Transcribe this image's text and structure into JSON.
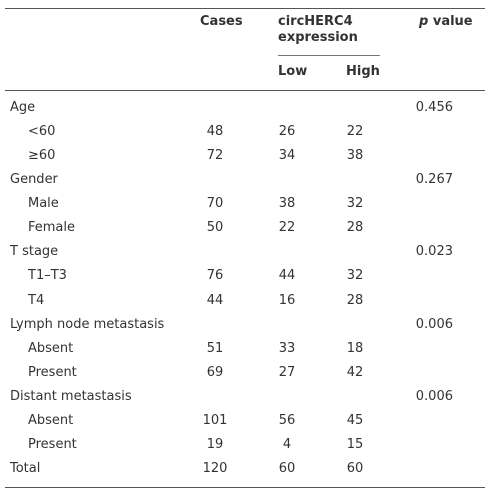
{
  "header": {
    "cases": "Cases",
    "expression_group": "circHERC4 expression",
    "low": "Low",
    "high": "High",
    "p_italic": "p",
    "p_rest": "value"
  },
  "groups": [
    {
      "label": "Age",
      "p": "0.456",
      "rows": [
        {
          "label": "<60",
          "cases": "48",
          "low": "26",
          "high": "22"
        },
        {
          "label": "≥60",
          "cases": "72",
          "low": "34",
          "high": "38"
        }
      ]
    },
    {
      "label": "Gender",
      "p": "0.267",
      "rows": [
        {
          "label": "Male",
          "cases": "70",
          "low": "38",
          "high": "32"
        },
        {
          "label": "Female",
          "cases": "50",
          "low": "22",
          "high": "28"
        }
      ]
    },
    {
      "label": "T stage",
      "p": "0.023",
      "rows": [
        {
          "label": "T1–T3",
          "cases": "76",
          "low": "44",
          "high": "32"
        },
        {
          "label": "T4",
          "cases": "44",
          "low": "16",
          "high": "28"
        }
      ]
    },
    {
      "label": "Lymph node metastasis",
      "p": "0.006",
      "rows": [
        {
          "label": "Absent",
          "cases": "51",
          "low": "33",
          "high": "18"
        },
        {
          "label": "Present",
          "cases": "69",
          "low": "27",
          "high": "42"
        }
      ]
    },
    {
      "label": "Distant metastasis",
      "p": "0.006",
      "rows": [
        {
          "label": "Absent",
          "cases": "101",
          "low": "56",
          "high": "45"
        },
        {
          "label": "Present",
          "cases": "19",
          "low": "4",
          "high": "15"
        }
      ]
    }
  ],
  "total": {
    "label": "Total",
    "cases": "120",
    "low": "60",
    "high": "60"
  }
}
